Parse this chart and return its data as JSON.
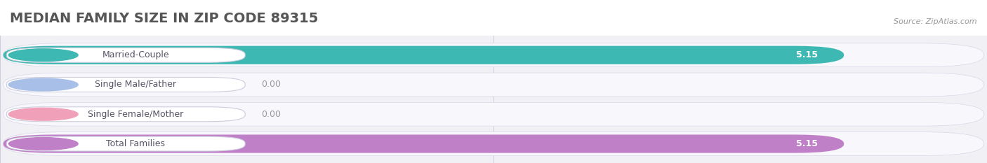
{
  "title": "MEDIAN FAMILY SIZE IN ZIP CODE 89315",
  "source": "Source: ZipAtlas.com",
  "categories": [
    "Married-Couple",
    "Single Male/Father",
    "Single Female/Mother",
    "Total Families"
  ],
  "values": [
    5.15,
    0.0,
    0.0,
    5.15
  ],
  "bar_colors": [
    "#3db8b2",
    "#a8bfe8",
    "#f0a0b8",
    "#c080c8"
  ],
  "xlim": [
    0,
    6.0
  ],
  "xticks": [
    0.0,
    3.0,
    6.0
  ],
  "title_bg_color": "#ffffff",
  "chart_bg_color": "#f0f0f5",
  "bar_bg_color": "#e8e8f0",
  "label_bg_color": "#ffffff",
  "title_fontsize": 14,
  "tick_fontsize": 9,
  "label_fontsize": 9,
  "value_fontsize": 9,
  "source_fontsize": 8
}
